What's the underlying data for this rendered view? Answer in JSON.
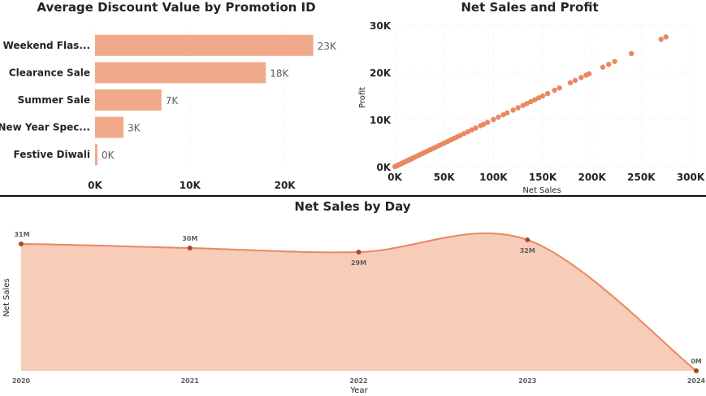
{
  "chart_data": [
    {
      "type": "bar",
      "orientation": "horizontal",
      "title": "Average Discount Value by Promotion ID",
      "categories": [
        "Weekend Flas...",
        "Clearance Sale",
        "Summer Sale",
        "New Year Spec...",
        "Festive Diwali"
      ],
      "values": [
        23000,
        18000,
        7000,
        3000,
        0
      ],
      "data_labels": [
        "23K",
        "18K",
        "7K",
        "3K",
        "0K"
      ],
      "x_ticks": [
        {
          "value": 0,
          "label": "0K"
        },
        {
          "value": 10000,
          "label": "10K"
        },
        {
          "value": 20000,
          "label": "20K"
        }
      ],
      "xlim": [
        0,
        25000
      ],
      "grid": true,
      "color": "#f0a98a"
    },
    {
      "type": "scatter",
      "title": "Net Sales and Profit",
      "xlabel": "Net Sales",
      "ylabel": "Profit",
      "xlim": [
        0,
        300000
      ],
      "ylim": [
        0,
        30000
      ],
      "x_ticks": [
        {
          "value": 0,
          "label": "0K"
        },
        {
          "value": 50000,
          "label": "50K"
        },
        {
          "value": 100000,
          "label": "100K"
        },
        {
          "value": 150000,
          "label": "150K"
        },
        {
          "value": 200000,
          "label": "200K"
        },
        {
          "value": 250000,
          "label": "250K"
        },
        {
          "value": 300000,
          "label": "300K"
        }
      ],
      "y_ticks": [
        {
          "value": 0,
          "label": "0K"
        },
        {
          "value": 10000,
          "label": "10K"
        },
        {
          "value": 20000,
          "label": "20K"
        },
        {
          "value": 30000,
          "label": "30K"
        }
      ],
      "grid": true,
      "color": "#e8895f",
      "points": [
        [
          0,
          0
        ],
        [
          1000,
          100
        ],
        [
          2000,
          200
        ],
        [
          3000,
          300
        ],
        [
          4000,
          400
        ],
        [
          5000,
          500
        ],
        [
          6000,
          600
        ],
        [
          7000,
          700
        ],
        [
          8000,
          800
        ],
        [
          9000,
          900
        ],
        [
          10000,
          1000
        ],
        [
          11000,
          1100
        ],
        [
          12000,
          1200
        ],
        [
          13000,
          1300
        ],
        [
          14000,
          1400
        ],
        [
          15000,
          1500
        ],
        [
          16000,
          1600
        ],
        [
          17000,
          1700
        ],
        [
          18000,
          1800
        ],
        [
          19000,
          1900
        ],
        [
          20000,
          2000
        ],
        [
          22000,
          2200
        ],
        [
          24000,
          2400
        ],
        [
          26000,
          2600
        ],
        [
          28000,
          2800
        ],
        [
          30000,
          3000
        ],
        [
          33000,
          3300
        ],
        [
          36000,
          3600
        ],
        [
          39000,
          3900
        ],
        [
          42000,
          4200
        ],
        [
          45000,
          4500
        ],
        [
          48000,
          4800
        ],
        [
          51000,
          5100
        ],
        [
          54000,
          5400
        ],
        [
          57000,
          5700
        ],
        [
          60000,
          6000
        ],
        [
          63000,
          6300
        ],
        [
          66000,
          6600
        ],
        [
          70000,
          7000
        ],
        [
          74000,
          7400
        ],
        [
          78000,
          7800
        ],
        [
          82000,
          8200
        ],
        [
          87000,
          8700
        ],
        [
          90000,
          9000
        ],
        [
          94000,
          9400
        ],
        [
          100000,
          10000
        ],
        [
          105000,
          10500
        ],
        [
          110000,
          11000
        ],
        [
          114000,
          11400
        ],
        [
          120000,
          12000
        ],
        [
          125000,
          12500
        ],
        [
          130000,
          13000
        ],
        [
          134000,
          13400
        ],
        [
          138000,
          13800
        ],
        [
          142000,
          14200
        ],
        [
          146000,
          14600
        ],
        [
          150000,
          15000
        ],
        [
          155000,
          15500
        ],
        [
          162000,
          16200
        ],
        [
          167000,
          16700
        ],
        [
          178000,
          17800
        ],
        [
          183000,
          18300
        ],
        [
          189000,
          18900
        ],
        [
          194000,
          19400
        ],
        [
          197000,
          19700
        ],
        [
          211000,
          21100
        ],
        [
          217000,
          21700
        ],
        [
          223000,
          22300
        ],
        [
          240000,
          24000
        ],
        [
          270000,
          27000
        ],
        [
          275000,
          27500
        ]
      ]
    },
    {
      "type": "area",
      "title": "Net Sales by Day",
      "xlabel": "Year",
      "ylabel": "Net Sales",
      "categories": [
        "2020",
        "2021",
        "2022",
        "2023",
        "2024"
      ],
      "values": [
        31,
        30,
        29,
        32,
        0
      ],
      "data_labels": [
        "31M",
        "30M",
        "29M",
        "32M",
        "0M"
      ],
      "unit": "M",
      "grid": false,
      "line_color": "#e8895f",
      "fill_color": "#f7ccb9",
      "marker_color": "#a84a26"
    }
  ]
}
